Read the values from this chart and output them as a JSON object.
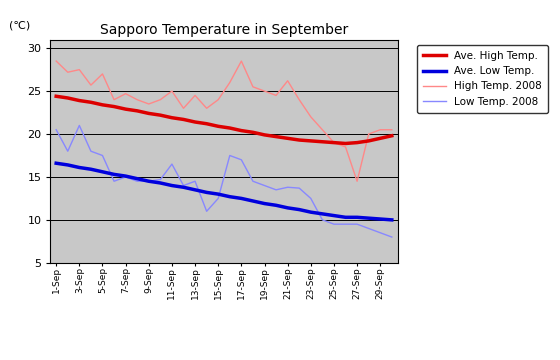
{
  "title": "Sapporo Temperature in September",
  "ylabel": "(℃)",
  "ylim": [
    5,
    31
  ],
  "yticks": [
    5,
    10,
    15,
    20,
    25,
    30
  ],
  "background_color": "#c8c8c8",
  "xtick_labels": [
    "1-Sep",
    "3-Sep",
    "5-Sep",
    "7-Sep",
    "9-Sep",
    "11-Sep",
    "13-Sep",
    "15-Sep",
    "17-Sep",
    "19-Sep",
    "21-Sep",
    "23-Sep",
    "25-Sep",
    "27-Sep",
    "29-Sep"
  ],
  "xtick_positions": [
    0,
    2,
    4,
    6,
    8,
    10,
    12,
    14,
    16,
    18,
    20,
    22,
    24,
    26,
    28
  ],
  "ave_high": [
    24.4,
    24.2,
    23.9,
    23.7,
    23.4,
    23.2,
    22.9,
    22.7,
    22.4,
    22.2,
    21.9,
    21.7,
    21.4,
    21.2,
    20.9,
    20.7,
    20.4,
    20.2,
    19.9,
    19.7,
    19.5,
    19.3,
    19.2,
    19.1,
    19.0,
    18.9,
    19.0,
    19.2,
    19.5,
    19.8
  ],
  "ave_low": [
    16.6,
    16.4,
    16.1,
    15.9,
    15.6,
    15.3,
    15.1,
    14.8,
    14.5,
    14.3,
    14.0,
    13.8,
    13.5,
    13.2,
    13.0,
    12.7,
    12.5,
    12.2,
    11.9,
    11.7,
    11.4,
    11.2,
    10.9,
    10.7,
    10.5,
    10.3,
    10.3,
    10.2,
    10.1,
    10.0
  ],
  "high_2008": [
    28.5,
    27.2,
    27.5,
    25.7,
    27.0,
    24.0,
    24.7,
    24.0,
    23.5,
    24.0,
    25.0,
    23.0,
    24.5,
    23.0,
    24.0,
    26.0,
    28.5,
    25.5,
    25.0,
    24.5,
    26.2,
    24.0,
    22.0,
    20.5,
    19.0,
    18.5,
    14.5,
    20.0,
    20.5,
    20.5
  ],
  "low_2008": [
    20.5,
    18.0,
    21.0,
    18.0,
    17.5,
    14.5,
    15.0,
    14.5,
    14.5,
    14.7,
    16.5,
    14.0,
    14.5,
    11.0,
    12.5,
    17.5,
    17.0,
    14.5,
    14.0,
    13.5,
    13.8,
    13.7,
    12.5,
    10.0,
    9.5,
    9.5,
    9.5,
    9.0,
    8.5,
    8.0
  ],
  "ave_high_color": "#dd0000",
  "ave_low_color": "#0000dd",
  "high_2008_color": "#ff8888",
  "low_2008_color": "#8888ff",
  "ave_high_linewidth": 2.5,
  "ave_low_linewidth": 2.5,
  "high_2008_linewidth": 1.0,
  "low_2008_linewidth": 1.0,
  "legend_labels": [
    "Ave. High Temp.",
    "Ave. Low Temp.",
    "High Temp. 2008",
    "Low Temp. 2008"
  ]
}
